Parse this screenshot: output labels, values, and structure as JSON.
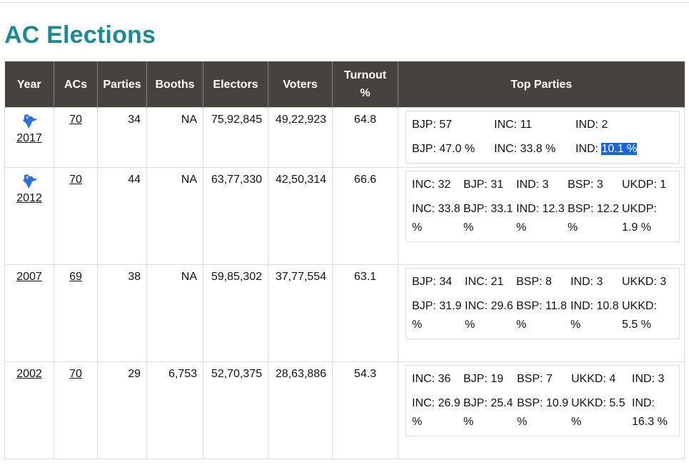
{
  "page": {
    "title": "AC Elections"
  },
  "table": {
    "headers": {
      "year": "Year",
      "acs": "ACs",
      "parties": "Parties",
      "booths": "Booths",
      "electors": "Electors",
      "voters": "Voters",
      "turnout": "Turnout %",
      "top_parties": "Top Parties"
    },
    "rows": [
      {
        "year": "2017",
        "acs": "70",
        "parties": "34",
        "booths": "NA",
        "electors": "75,92,845",
        "voters": "49,22,923",
        "turnout": "64.8",
        "seats": [
          "BJP: 57",
          "INC: 11",
          "IND: 2"
        ],
        "share_prefix": [
          "BJP: 47.0 %",
          "INC: 33.8 %",
          "IND: "
        ],
        "share_highlight": "10.1 %"
      },
      {
        "year": "2012",
        "acs": "70",
        "parties": "44",
        "booths": "NA",
        "electors": "63,77,330",
        "voters": "42,50,314",
        "turnout": "66.6",
        "seats": [
          "INC: 32",
          "BJP: 31",
          "IND: 3",
          "BSP: 3",
          "UKDP: 1"
        ],
        "shares": [
          "INC: 33.8 %",
          "BJP: 33.1 %",
          "IND: 12.3 %",
          "BSP: 12.2 %",
          "UKDP: 1.9 %"
        ]
      },
      {
        "year": "2007",
        "acs": "69",
        "parties": "38",
        "booths": "NA",
        "electors": "59,85,302",
        "voters": "37,77,554",
        "turnout": "63.1",
        "seats": [
          "BJP: 34",
          "INC: 21",
          "BSP: 8",
          "IND: 3",
          "UKKD: 3"
        ],
        "shares": [
          "BJP: 31.9 %",
          "INC: 29.6 %",
          "BSP: 11.8 %",
          "IND: 10.8 %",
          "UKKD: 5.5 %"
        ]
      },
      {
        "year": "2002",
        "acs": "70",
        "parties": "29",
        "booths": "6,753",
        "electors": "52,70,375",
        "voters": "28,63,886",
        "turnout": "54.3",
        "seats": [
          "INC: 36",
          "BJP: 19",
          "BSP: 7",
          "UKKD: 4",
          "IND: 3"
        ],
        "shares": [
          "INC: 26.9 %",
          "BJP: 25.4 %",
          "BSP: 10.9 %",
          "UKKD: 5.5 %",
          "IND: 16.3 %"
        ]
      }
    ]
  },
  "icons": {
    "map": "india-map-icon"
  },
  "colors": {
    "title": "#1b8a96",
    "header_bg": "#48423f",
    "selection": "#1a64d3"
  }
}
